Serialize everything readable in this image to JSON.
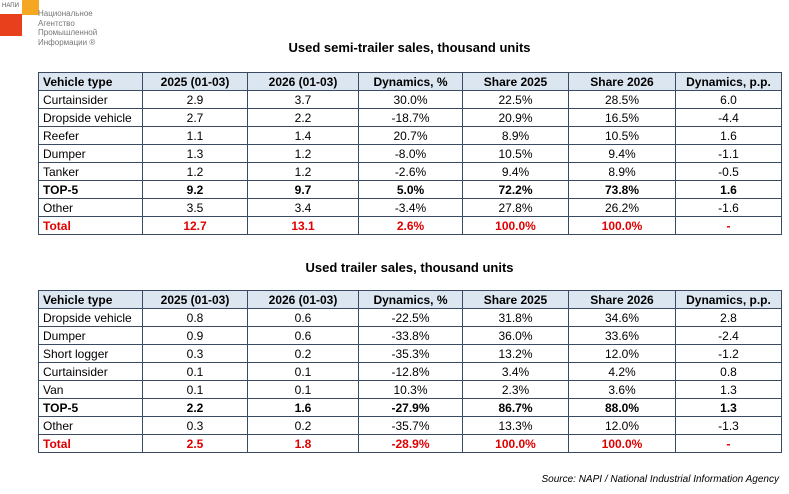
{
  "logo": {
    "abbr": "НАПИ",
    "name": [
      "Национальное",
      "Агентство",
      "Промышленной",
      "Информации ®"
    ]
  },
  "tables": [
    {
      "title": "Used semi-trailer sales, thousand units",
      "columns": [
        "Vehicle type",
        "2025 (01-03)",
        "2026 (01-03)",
        "Dynamics, %",
        "Share 2025",
        "Share 2026",
        "Dynamics, p.p."
      ],
      "rows": [
        [
          "Curtainsider",
          "2.9",
          "3.7",
          "30.0%",
          "22.5%",
          "28.5%",
          "6.0"
        ],
        [
          "Dropside vehicle",
          "2.7",
          "2.2",
          "-18.7%",
          "20.9%",
          "16.5%",
          "-4.4"
        ],
        [
          "Reefer",
          "1.1",
          "1.4",
          "20.7%",
          "8.9%",
          "10.5%",
          "1.6"
        ],
        [
          "Dumper",
          "1.3",
          "1.2",
          "-8.0%",
          "10.5%",
          "9.4%",
          "-1.1"
        ],
        [
          "Tanker",
          "1.2",
          "1.2",
          "-2.6%",
          "9.4%",
          "8.9%",
          "-0.5"
        ],
        [
          "TOP-5",
          "9.2",
          "9.7",
          "5.0%",
          "72.2%",
          "73.8%",
          "1.6"
        ],
        [
          "Other",
          "3.5",
          "3.4",
          "-3.4%",
          "27.8%",
          "26.2%",
          "-1.6"
        ],
        [
          "Total",
          "12.7",
          "13.1",
          "2.6%",
          "100.0%",
          "100.0%",
          "-"
        ]
      ]
    },
    {
      "title": "Used trailer sales, thousand units",
      "columns": [
        "Vehicle type",
        "2025 (01-03)",
        "2026 (01-03)",
        "Dynamics, %",
        "Share 2025",
        "Share 2026",
        "Dynamics, p.p."
      ],
      "rows": [
        [
          "Dropside vehicle",
          "0.8",
          "0.6",
          "-22.5%",
          "31.8%",
          "34.6%",
          "2.8"
        ],
        [
          "Dumper",
          "0.9",
          "0.6",
          "-33.8%",
          "36.0%",
          "33.6%",
          "-2.4"
        ],
        [
          "Short logger",
          "0.3",
          "0.2",
          "-35.3%",
          "13.2%",
          "12.0%",
          "-1.2"
        ],
        [
          "Curtainsider",
          "0.1",
          "0.1",
          "-12.8%",
          "3.4%",
          "4.2%",
          "0.8"
        ],
        [
          "Van",
          "0.1",
          "0.1",
          "10.3%",
          "2.3%",
          "3.6%",
          "1.3"
        ],
        [
          "TOP-5",
          "2.2",
          "1.6",
          "-27.9%",
          "86.7%",
          "88.0%",
          "1.3"
        ],
        [
          "Other",
          "0.3",
          "0.2",
          "-35.7%",
          "13.3%",
          "12.0%",
          "-1.3"
        ],
        [
          "Total",
          "2.5",
          "1.8",
          "-28.9%",
          "100.0%",
          "100.0%",
          "-"
        ]
      ]
    }
  ],
  "source": "Source: NAPI / National Industrial Information Agency"
}
